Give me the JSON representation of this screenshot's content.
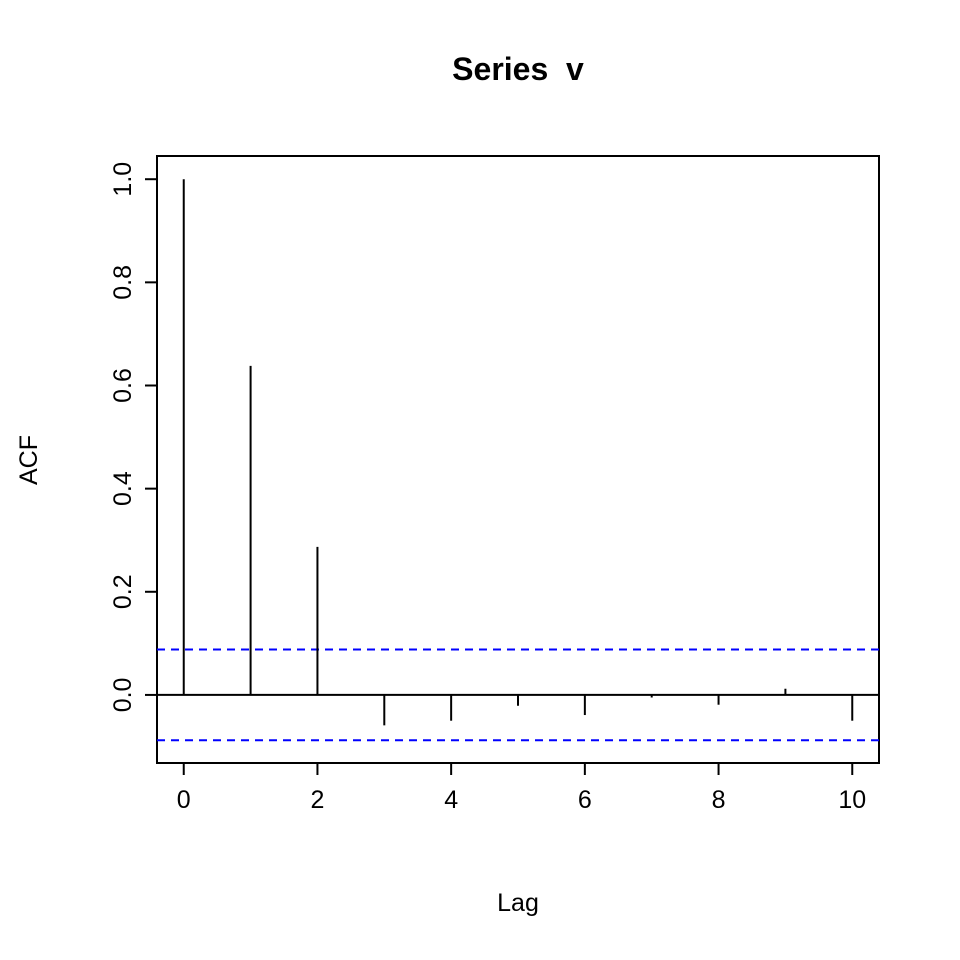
{
  "chart_data": {
    "type": "bar",
    "subtype": "acf-stem",
    "title": "Series  v",
    "xlabel": "Lag",
    "ylabel": "ACF",
    "x": [
      0,
      1,
      2,
      3,
      4,
      5,
      6,
      7,
      8,
      9,
      10
    ],
    "values": [
      1.0,
      0.638,
      0.287,
      -0.059,
      -0.05,
      -0.021,
      -0.039,
      -0.005,
      -0.019,
      0.012,
      -0.05
    ],
    "confidence_bounds": [
      -0.088,
      0.088
    ],
    "xlim": [
      -0.4,
      10.4
    ],
    "ylim": [
      -0.132,
      1.045
    ],
    "xticks": [
      "0",
      "2",
      "4",
      "6",
      "8",
      "10"
    ],
    "yticks": [
      "0.0",
      "0.2",
      "0.4",
      "0.6",
      "0.8",
      "1.0"
    ],
    "grid": false,
    "colors": {
      "stems": "#000000",
      "confidence": "#0000ff",
      "zero_line": "#000000"
    }
  }
}
